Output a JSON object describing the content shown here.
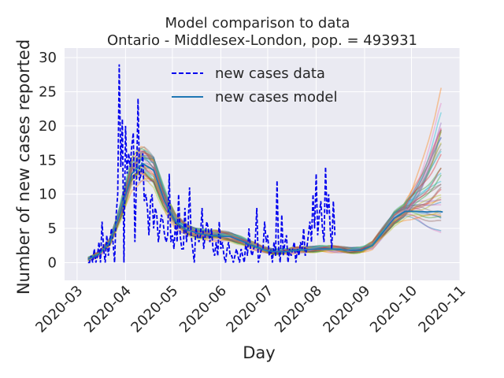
{
  "chart_data": {
    "type": "line",
    "title": "Model comparison to data",
    "subtitle": "Ontario - Middlesex-London, pop. = 493931",
    "xlabel": "Day",
    "ylabel": "Number of new cases reported",
    "xlim": [
      "2020-02-22",
      "2020-11-01"
    ],
    "ylim": [
      -2.6,
      31.4
    ],
    "x_ticks": [
      "2020-03-01",
      "2020-04-01",
      "2020-05-01",
      "2020-06-01",
      "2020-07-01",
      "2020-08-01",
      "2020-09-01",
      "2020-10-01",
      "2020-11-01"
    ],
    "x_tick_labels": [
      "2020-03",
      "2020-04",
      "2020-05",
      "2020-06",
      "2020-07",
      "2020-08",
      "2020-09",
      "2020-10",
      "2020-11"
    ],
    "y_ticks": [
      0,
      5,
      10,
      15,
      20,
      25,
      30
    ],
    "y_tick_labels": [
      "0",
      "5",
      "10",
      "15",
      "20",
      "25",
      "30"
    ],
    "grid": true,
    "legend_position": "top-center",
    "legend": [
      {
        "label": "new cases data",
        "style": "dashed",
        "color": "#0000ee"
      },
      {
        "label": "new cases model",
        "style": "solid",
        "color": "#1f77b4"
      }
    ],
    "colors": {
      "background": "#eaeaf2",
      "grid": "#ffffff",
      "data": "#0000ee",
      "model": "#1f77b4",
      "ensemble": [
        "#1f77b4",
        "#ff7f0e",
        "#2ca02c",
        "#d62728",
        "#9467bd",
        "#8c564b",
        "#e377c2",
        "#7f7f7f",
        "#bcbd22",
        "#17becf"
      ]
    },
    "ensemble_count": 40,
    "series": [
      {
        "name": "new cases data",
        "style": "dashed",
        "x_start": "2020-03-08",
        "values": [
          0,
          0,
          1,
          0,
          2,
          0,
          1,
          3,
          0,
          6,
          2,
          0,
          4,
          1,
          3,
          5,
          3,
          0,
          7,
          10,
          29,
          14,
          21,
          0,
          20,
          13,
          16,
          14,
          17,
          19,
          3,
          12,
          24,
          12,
          13,
          16,
          9,
          10,
          8,
          4,
          9,
          10,
          5,
          8,
          7,
          3,
          5,
          7,
          6,
          4,
          3,
          4,
          13,
          3,
          4,
          2,
          6,
          3,
          10,
          4,
          2,
          2,
          8,
          3,
          5,
          11,
          4,
          2,
          0,
          5,
          4,
          3,
          4,
          8,
          2,
          4,
          6,
          5,
          3,
          5,
          2,
          1,
          3,
          1,
          6,
          2,
          3,
          1,
          0,
          2,
          3,
          1,
          1,
          0,
          1,
          2,
          1,
          0,
          2,
          1,
          0,
          3,
          1,
          5,
          2,
          1,
          2,
          3,
          8,
          0,
          1,
          2,
          2,
          6,
          3,
          4,
          1,
          2,
          0,
          3,
          1,
          12,
          2,
          0,
          7,
          1,
          3,
          4,
          0,
          2,
          1,
          2,
          3,
          0,
          2,
          1,
          3,
          2,
          5,
          1,
          2,
          4,
          6,
          3,
          10,
          5,
          13,
          4,
          7,
          9,
          5,
          3,
          14,
          7,
          10,
          5,
          2,
          9,
          4
        ]
      },
      {
        "name": "new cases model",
        "style": "solid",
        "x": [
          "2020-03-08",
          "2020-03-15",
          "2020-03-22",
          "2020-03-29",
          "2020-04-05",
          "2020-04-12",
          "2020-04-19",
          "2020-04-26",
          "2020-05-03",
          "2020-05-10",
          "2020-05-17",
          "2020-05-24",
          "2020-05-31",
          "2020-06-07",
          "2020-06-14",
          "2020-06-21",
          "2020-06-28",
          "2020-07-05",
          "2020-07-12",
          "2020-07-19",
          "2020-07-26",
          "2020-08-02",
          "2020-08-09",
          "2020-08-16",
          "2020-08-23",
          "2020-08-30",
          "2020-09-06",
          "2020-09-13",
          "2020-09-20",
          "2020-09-27",
          "2020-10-04",
          "2020-10-11",
          "2020-10-18",
          "2020-10-21"
        ],
        "values": [
          0.5,
          1.2,
          3.0,
          7.5,
          13.0,
          14.5,
          13.5,
          9.0,
          6.0,
          4.8,
          4.3,
          4.0,
          3.9,
          3.8,
          3.2,
          2.5,
          1.9,
          1.6,
          1.6,
          1.8,
          1.9,
          2.0,
          2.0,
          1.9,
          1.8,
          1.8,
          2.5,
          4.5,
          6.5,
          7.5,
          7.5,
          7.4,
          7.5,
          7.4
        ]
      }
    ]
  }
}
